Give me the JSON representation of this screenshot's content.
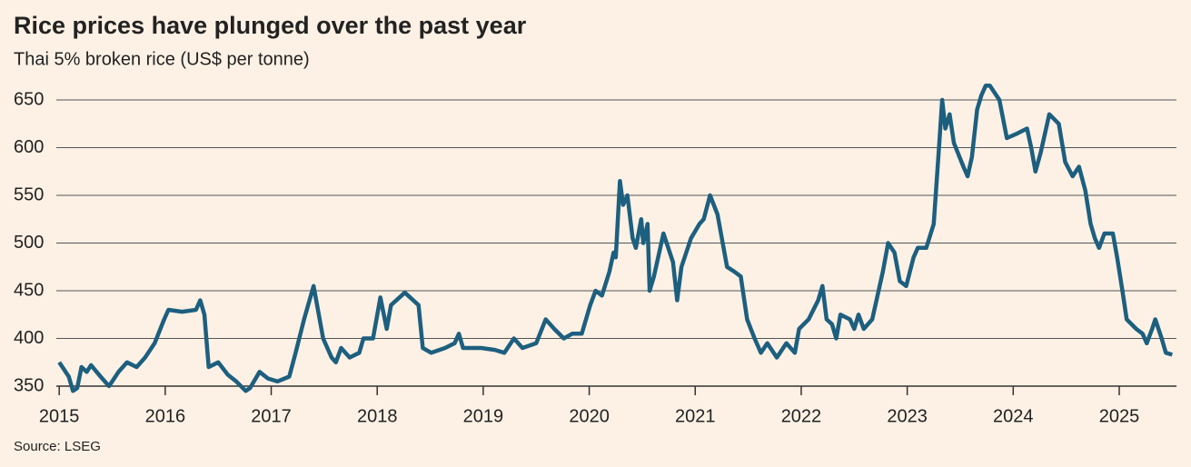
{
  "chart_data": {
    "type": "line",
    "title": "Rice prices have plunged over the past year",
    "subtitle": "Thai 5% broken rice (US$ per tonne)",
    "source": "Source: LSEG",
    "x": [
      2015.0,
      2015.09,
      2015.13,
      2015.17,
      2015.21,
      2015.26,
      2015.3,
      2015.39,
      2015.47,
      2015.56,
      2015.64,
      2015.73,
      2015.81,
      2015.9,
      2015.99,
      2016.03,
      2016.16,
      2016.29,
      2016.33,
      2016.37,
      2016.41,
      2016.5,
      2016.59,
      2016.67,
      2016.76,
      2016.8,
      2016.89,
      2016.97,
      2017.06,
      2017.17,
      2017.23,
      2017.31,
      2017.4,
      2017.49,
      2017.57,
      2017.61,
      2017.66,
      2017.74,
      2017.83,
      2017.87,
      2017.96,
      2018.03,
      2018.09,
      2018.13,
      2018.26,
      2018.39,
      2018.43,
      2018.51,
      2018.64,
      2018.73,
      2018.77,
      2018.81,
      2018.98,
      2019.11,
      2019.2,
      2019.29,
      2019.37,
      2019.5,
      2019.59,
      2019.67,
      2019.76,
      2019.84,
      2019.93,
      2020.01,
      2020.06,
      2020.12,
      2020.19,
      2020.23,
      2020.25,
      2020.29,
      2020.32,
      2020.36,
      2020.41,
      2020.44,
      2020.49,
      2020.51,
      2020.55,
      2020.57,
      2020.61,
      2020.7,
      2020.79,
      2020.83,
      2020.87,
      2020.96,
      2021.04,
      2021.08,
      2021.14,
      2021.21,
      2021.3,
      2021.37,
      2021.43,
      2021.49,
      2021.56,
      2021.62,
      2021.68,
      2021.77,
      2021.86,
      2021.94,
      2021.98,
      2022.07,
      2022.16,
      2022.2,
      2022.24,
      2022.29,
      2022.33,
      2022.37,
      2022.46,
      2022.5,
      2022.54,
      2022.59,
      2022.67,
      2022.71,
      2022.77,
      2022.82,
      2022.88,
      2022.93,
      2022.99,
      2023.06,
      2023.1,
      2023.18,
      2023.25,
      2023.3,
      2023.33,
      2023.36,
      2023.4,
      2023.44,
      2023.53,
      2023.57,
      2023.61,
      2023.66,
      2023.7,
      2023.74,
      2023.78,
      2023.87,
      2023.94,
      2024.04,
      2024.13,
      2024.17,
      2024.21,
      2024.26,
      2024.34,
      2024.43,
      2024.49,
      2024.56,
      2024.62,
      2024.68,
      2024.73,
      2024.77,
      2024.81,
      2024.86,
      2024.94,
      2024.98,
      2025.03,
      2025.07,
      2025.16,
      2025.22,
      2025.26,
      2025.31,
      2025.34,
      2025.4,
      2025.44,
      2025.5
    ],
    "series": [
      {
        "name": "Thai 5% broken rice",
        "color": "#1d5f7f",
        "values": [
          375,
          360,
          345,
          348,
          370,
          365,
          372,
          360,
          350,
          365,
          375,
          370,
          380,
          395,
          420,
          430,
          428,
          430,
          440,
          425,
          370,
          375,
          362,
          355,
          345,
          348,
          365,
          358,
          355,
          360,
          385,
          420,
          455,
          400,
          380,
          375,
          390,
          380,
          385,
          400,
          400,
          443,
          410,
          435,
          448,
          435,
          390,
          385,
          390,
          395,
          405,
          390,
          390,
          388,
          385,
          400,
          390,
          395,
          420,
          410,
          400,
          405,
          405,
          435,
          450,
          445,
          470,
          490,
          485,
          565,
          540,
          550,
          505,
          495,
          525,
          500,
          520,
          450,
          465,
          510,
          480,
          440,
          475,
          505,
          520,
          525,
          550,
          530,
          475,
          470,
          465,
          420,
          400,
          385,
          395,
          380,
          395,
          385,
          410,
          420,
          440,
          455,
          420,
          415,
          400,
          425,
          420,
          410,
          425,
          410,
          420,
          440,
          470,
          500,
          490,
          460,
          455,
          485,
          495,
          495,
          520,
          600,
          650,
          620,
          635,
          605,
          580,
          570,
          590,
          640,
          655,
          665,
          665,
          650,
          610,
          615,
          620,
          600,
          575,
          595,
          635,
          625,
          585,
          570,
          580,
          555,
          520,
          505,
          495,
          510,
          510,
          485,
          450,
          420,
          410,
          405,
          395,
          410,
          420,
          400,
          385,
          383
        ]
      }
    ],
    "xlim": [
      2014.57,
      2025.54
    ],
    "xticks": [
      2015,
      2016,
      2017,
      2018,
      2019,
      2020,
      2021,
      2022,
      2023,
      2024,
      2025
    ],
    "ylim": [
      340,
      670
    ],
    "yticks": [
      350,
      400,
      450,
      500,
      550,
      600,
      650
    ],
    "grid": true
  }
}
